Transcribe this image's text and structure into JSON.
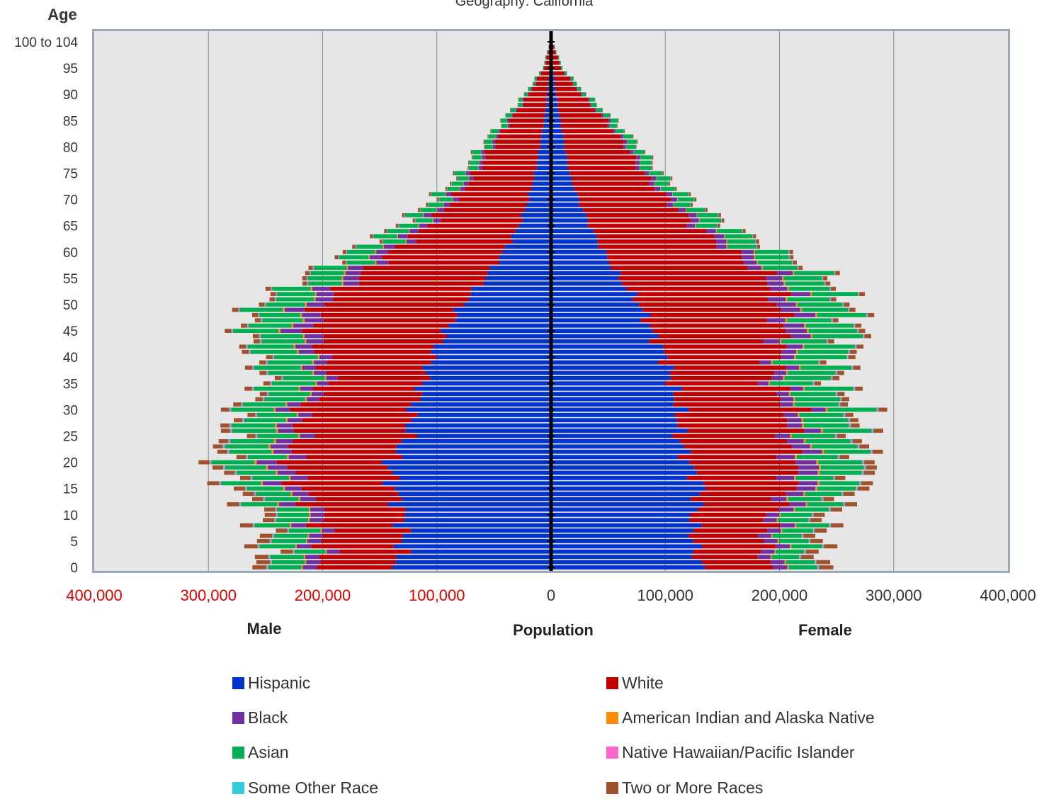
{
  "chart_data": {
    "type": "bar",
    "orientation": "horizontal-population-pyramid",
    "stacked": true,
    "title": "Geography:  California",
    "y_axis_title": "Age",
    "x_axis_title": "Population",
    "left_label": "Male",
    "right_label": "Female",
    "xlim": [
      -400000,
      400000
    ],
    "x_ticks": [
      -400000,
      -300000,
      -200000,
      -100000,
      0,
      100000,
      200000,
      300000,
      400000
    ],
    "x_tick_labels": [
      "400,000",
      "300,000",
      "200,000",
      "100,000",
      "0",
      "100,000",
      "200,000",
      "300,000",
      "400,000"
    ],
    "y_ticks": [
      0,
      5,
      10,
      15,
      20,
      25,
      30,
      35,
      40,
      45,
      50,
      55,
      60,
      65,
      70,
      75,
      80,
      85,
      90,
      95,
      100
    ],
    "y_tick_labels": [
      "0",
      "5",
      "10",
      "15",
      "20",
      "25",
      "30",
      "35",
      "40",
      "45",
      "50",
      "55",
      "60",
      "65",
      "70",
      "75",
      "80",
      "85",
      "90",
      "95",
      "100 to 104"
    ],
    "grid": true,
    "legend": "bottom",
    "series_names": [
      "Hispanic",
      "White",
      "Black",
      "American Indian and Alaska Native",
      "Asian",
      "Native Hawaiian/Pacific Islander",
      "Some Other Race",
      "Two or More Races"
    ],
    "series_colors": [
      "#0033cc",
      "#c00000",
      "#7030a0",
      "#ff8c00",
      "#00b050",
      "#ff66cc",
      "#33ccdd",
      "#a0522d"
    ],
    "profile_ages": [
      0,
      5,
      10,
      15,
      20,
      25,
      30,
      35,
      40,
      45,
      50,
      55,
      60,
      65,
      70,
      75,
      80,
      85,
      90,
      95,
      100
    ],
    "male_profile": {
      "Hispanic": [
        135000,
        130000,
        130000,
        138000,
        142000,
        125000,
        122000,
        112000,
        105000,
        92000,
        78000,
        58000,
        42000,
        28000,
        20000,
        14000,
        10000,
        6000,
        3500,
        1500,
        300
      ],
      "White": [
        64000,
        70000,
        72000,
        82000,
        88000,
        95000,
        98000,
        82000,
        95000,
        116000,
        125000,
        112000,
        98000,
        80000,
        65000,
        52000,
        42000,
        30000,
        16000,
        4500,
        600
      ],
      "Black": [
        12000,
        12000,
        12000,
        15000,
        17000,
        14000,
        12000,
        10000,
        12000,
        18000,
        16000,
        14000,
        10000,
        7000,
        5000,
        3500,
        2500,
        1500,
        800,
        300,
        50
      ],
      "American Indian and Alaska Native": [
        1200,
        1200,
        1300,
        1500,
        1800,
        1600,
        1500,
        1300,
        1400,
        1500,
        1500,
        1300,
        1000,
        700,
        500,
        350,
        250,
        150,
        80,
        30,
        10
      ],
      "Asian": [
        28000,
        30000,
        28000,
        32000,
        36000,
        38000,
        36000,
        38000,
        40000,
        38000,
        35000,
        30000,
        24000,
        17000,
        12000,
        9000,
        7000,
        5000,
        2800,
        900,
        150
      ],
      "Native Hawaiian/Pacific Islander": [
        800,
        800,
        800,
        900,
        1000,
        1000,
        900,
        800,
        800,
        800,
        700,
        600,
        450,
        300,
        200,
        150,
        100,
        60,
        30,
        10,
        5
      ],
      "Some Other Race": [
        900,
        800,
        700,
        700,
        800,
        800,
        700,
        600,
        600,
        600,
        500,
        400,
        300,
        200,
        150,
        100,
        80,
        50,
        30,
        10,
        5
      ],
      "Two or More Races": [
        12000,
        11000,
        10000,
        10000,
        9000,
        8000,
        7000,
        6000,
        6000,
        5500,
        5000,
        4000,
        3000,
        2200,
        1600,
        1100,
        800,
        500,
        300,
        100,
        20
      ]
    },
    "female_profile": {
      "Hispanic": [
        130000,
        125000,
        125000,
        132000,
        120000,
        112000,
        112000,
        106000,
        100000,
        88000,
        78000,
        60000,
        46000,
        34000,
        24000,
        16000,
        12000,
        8000,
        4500,
        2000,
        400
      ],
      "White": [
        58000,
        62000,
        68000,
        78000,
        92000,
        95000,
        100000,
        86000,
        98000,
        115000,
        122000,
        132000,
        113000,
        92000,
        78000,
        64000,
        54000,
        40000,
        22000,
        6500,
        900
      ],
      "Black": [
        12000,
        12000,
        12000,
        16000,
        18000,
        14000,
        12000,
        10000,
        11000,
        18000,
        17000,
        14000,
        10000,
        7500,
        5500,
        4000,
        3000,
        1800,
        900,
        350,
        60
      ],
      "American Indian and Alaska Native": [
        1200,
        1200,
        1300,
        1500,
        1800,
        1600,
        1500,
        1300,
        1400,
        1500,
        1500,
        1300,
        1000,
        700,
        500,
        350,
        250,
        150,
        80,
        30,
        10
      ],
      "Asian": [
        24000,
        26000,
        28000,
        33000,
        38000,
        40000,
        40000,
        40000,
        44000,
        42000,
        40000,
        34000,
        28000,
        20000,
        14000,
        11000,
        8500,
        6000,
        3500,
        1200,
        200
      ],
      "Native Hawaiian/Pacific Islander": [
        800,
        800,
        800,
        900,
        1000,
        1000,
        900,
        800,
        800,
        800,
        700,
        600,
        450,
        300,
        200,
        150,
        100,
        60,
        30,
        10,
        5
      ],
      "Some Other Race": [
        900,
        800,
        700,
        700,
        800,
        800,
        700,
        600,
        600,
        600,
        500,
        400,
        300,
        200,
        150,
        100,
        80,
        50,
        30,
        10,
        5
      ],
      "Two or More Races": [
        12000,
        11000,
        10000,
        10000,
        9000,
        8000,
        7000,
        6000,
        6000,
        5500,
        5000,
        4000,
        3000,
        2200,
        1600,
        1100,
        800,
        500,
        300,
        100,
        20
      ]
    }
  }
}
